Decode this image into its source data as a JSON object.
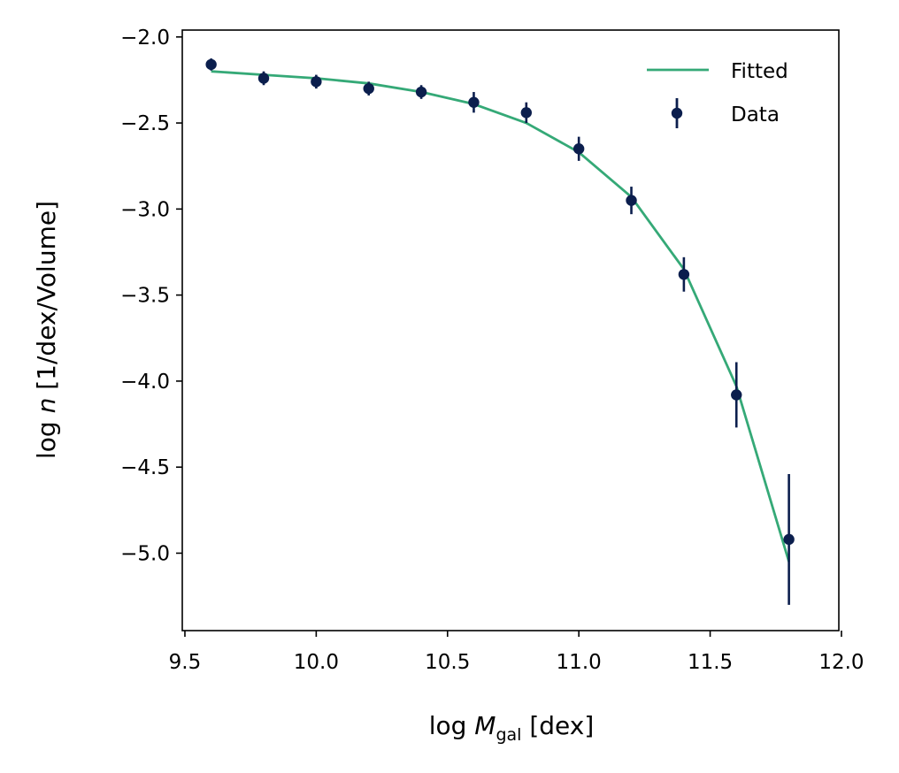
{
  "chart_data": {
    "type": "scatter",
    "xlabel_prefix": "log ",
    "xlabel_var": "M",
    "xlabel_sub": "gal",
    "xlabel_suffix": " [dex]",
    "ylabel_prefix": "log ",
    "ylabel_var": "n",
    "ylabel_suffix": " [1/dex/Volume]",
    "xlim": [
      9.49,
      11.99
    ],
    "ylim": [
      -5.45,
      -1.96
    ],
    "xticks": [
      9.5,
      10.0,
      10.5,
      11.0,
      11.5,
      12.0
    ],
    "xtick_labels": [
      "9.5",
      "10.0",
      "10.5",
      "11.0",
      "11.5",
      "12.0"
    ],
    "yticks": [
      -2.0,
      -2.5,
      -3.0,
      -3.5,
      -4.0,
      -4.5,
      -5.0
    ],
    "ytick_labels": [
      "−2.0",
      "−2.5",
      "−3.0",
      "−3.5",
      "−4.0",
      "−4.5",
      "−5.0"
    ],
    "grid": false,
    "legend": {
      "placement": "top-right",
      "entries": [
        {
          "label": "Fitted",
          "kind": "line"
        },
        {
          "label": "Data",
          "kind": "errorbar"
        }
      ]
    },
    "series": [
      {
        "name": "Fitted",
        "kind": "line",
        "color": "#35a977",
        "x": [
          9.6,
          9.8,
          10.0,
          10.2,
          10.4,
          10.6,
          10.8,
          11.0,
          11.2,
          11.4,
          11.6,
          11.8
        ],
        "y": [
          -2.2,
          -2.22,
          -2.24,
          -2.27,
          -2.32,
          -2.39,
          -2.5,
          -2.67,
          -2.93,
          -3.35,
          -4.03,
          -5.05
        ]
      },
      {
        "name": "Data",
        "kind": "errorbar",
        "color": "#0b1e4d",
        "x": [
          9.6,
          9.8,
          10.0,
          10.2,
          10.4,
          10.6,
          10.8,
          11.0,
          11.2,
          11.4,
          11.6,
          11.8
        ],
        "y": [
          -2.16,
          -2.24,
          -2.26,
          -2.3,
          -2.32,
          -2.38,
          -2.44,
          -2.65,
          -2.95,
          -3.38,
          -4.08,
          -4.92
        ],
        "yerr": [
          0.035,
          0.04,
          0.04,
          0.04,
          0.04,
          0.06,
          0.06,
          0.07,
          0.08,
          0.1,
          0.19,
          0.38
        ]
      }
    ]
  }
}
